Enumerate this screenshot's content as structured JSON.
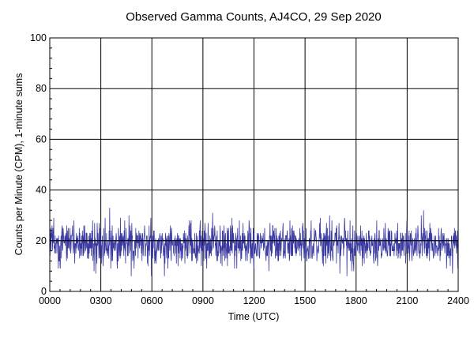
{
  "chart_data": {
    "type": "line",
    "title": "Observed Gamma Counts, AJ4CO, 29 Sep 2020",
    "xlabel": "Time (UTC)",
    "ylabel": "Counts per Minute (CPM), 1-minute sums",
    "xlim": [
      0,
      2400
    ],
    "ylim": [
      0,
      100
    ],
    "x_ticks": [
      "0000",
      "0300",
      "0600",
      "0900",
      "1200",
      "1500",
      "1800",
      "2100",
      "2400"
    ],
    "y_ticks": [
      "0",
      "20",
      "40",
      "60",
      "80",
      "100"
    ],
    "grid": true,
    "series": [
      {
        "color": "#3a3aa0",
        "sampling": "1-minute counts over 24 hours (1440 samples)",
        "mean": 18.5,
        "min": 5,
        "max": 33,
        "reference_value": 20
      }
    ]
  }
}
